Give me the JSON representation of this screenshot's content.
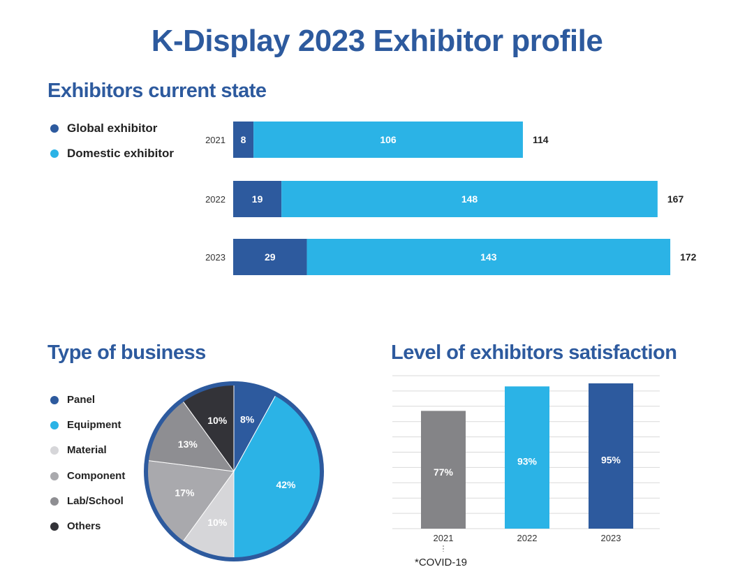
{
  "title": "K-Display 2023 Exhibitor profile",
  "colors": {
    "title": "#2d5a9e",
    "global": "#2d5a9e",
    "domestic": "#2bb3e6",
    "panel": "#2d5a9e",
    "equipment": "#2bb3e6",
    "material": "#d6d6d9",
    "component": "#a9a9ad",
    "lab_school": "#8e8e92",
    "others": "#333338",
    "bar2021": "#848487",
    "pie_border": "#2d5a9e",
    "grid": "#d9d9d9"
  },
  "sections": {
    "exhibitors": "Exhibitors current state",
    "business": "Type of business",
    "satisfaction": "Level of exhibitors satisfaction"
  },
  "note": "*COVID-19",
  "chart_data": [
    {
      "type": "bar",
      "orientation": "horizontal",
      "stacked": true,
      "title": "Exhibitors current state",
      "categories": [
        "2021",
        "2022",
        "2023"
      ],
      "series": [
        {
          "name": "Global exhibitor",
          "color": "#2d5a9e",
          "values": [
            8,
            19,
            29
          ]
        },
        {
          "name": "Domestic exhibitor",
          "color": "#2bb3e6",
          "values": [
            106,
            148,
            143
          ]
        }
      ],
      "totals": [
        114,
        167,
        172
      ],
      "legend": "top-left"
    },
    {
      "type": "pie",
      "title": "Type of business",
      "labels": [
        "Panel",
        "Equipment",
        "Material",
        "Component",
        "Lab/School",
        "Others"
      ],
      "values": [
        8,
        42,
        10,
        17,
        13,
        10
      ],
      "display": [
        "8%",
        "42%",
        "10%",
        "17%",
        "13%",
        "10%"
      ],
      "colors": [
        "#2d5a9e",
        "#2bb3e6",
        "#d6d6d9",
        "#a9a9ad",
        "#8e8e92",
        "#333338"
      ],
      "legend": "left"
    },
    {
      "type": "bar",
      "title": "Level of exhibitors satisfaction",
      "categories": [
        "2021",
        "2022",
        "2023"
      ],
      "values": [
        77,
        93,
        95
      ],
      "display": [
        "77%",
        "93%",
        "95%"
      ],
      "colors": [
        "#848487",
        "#2bb3e6",
        "#2d5a9e"
      ],
      "ylim": [
        0,
        100
      ],
      "grid": true
    }
  ]
}
